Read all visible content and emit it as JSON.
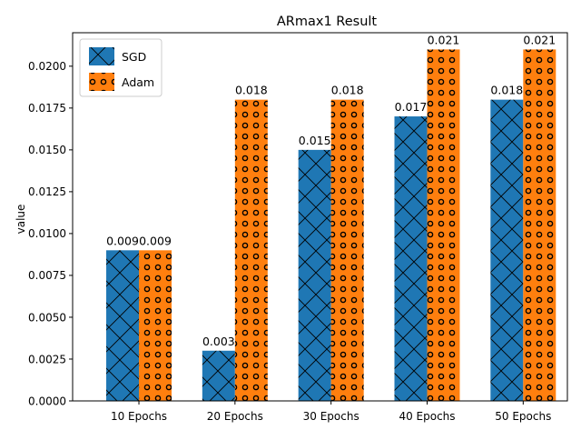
{
  "chart_data": {
    "type": "bar",
    "title": "ARmax1 Result",
    "xlabel": "",
    "ylabel": "value",
    "categories": [
      "10 Epochs",
      "20 Epochs",
      "30 Epochs",
      "40 Epochs",
      "50 Epochs"
    ],
    "series": [
      {
        "name": "SGD",
        "values": [
          0.009,
          0.003,
          0.015,
          0.017,
          0.018
        ],
        "color": "#1f77b4",
        "hatch": "cross-x"
      },
      {
        "name": "Adam",
        "values": [
          0.009,
          0.018,
          0.018,
          0.021,
          0.021
        ],
        "color": "#ff7f0e",
        "hatch": "circles"
      }
    ],
    "data_labels": [
      [
        "0.009",
        "0.003",
        "0.015",
        "0.017",
        "0.018"
      ],
      [
        "0.009",
        "0.018",
        "0.018",
        "0.021",
        "0.021"
      ]
    ],
    "ylim": [
      0,
      0.022
    ],
    "yticks": [
      "0.0000",
      "0.0025",
      "0.0050",
      "0.0075",
      "0.0100",
      "0.0125",
      "0.0150",
      "0.0175",
      "0.0200"
    ],
    "ytick_values": [
      0,
      0.0025,
      0.005,
      0.0075,
      0.01,
      0.0125,
      0.015,
      0.0175,
      0.02
    ],
    "grid": false,
    "legend_position": "top-left"
  }
}
